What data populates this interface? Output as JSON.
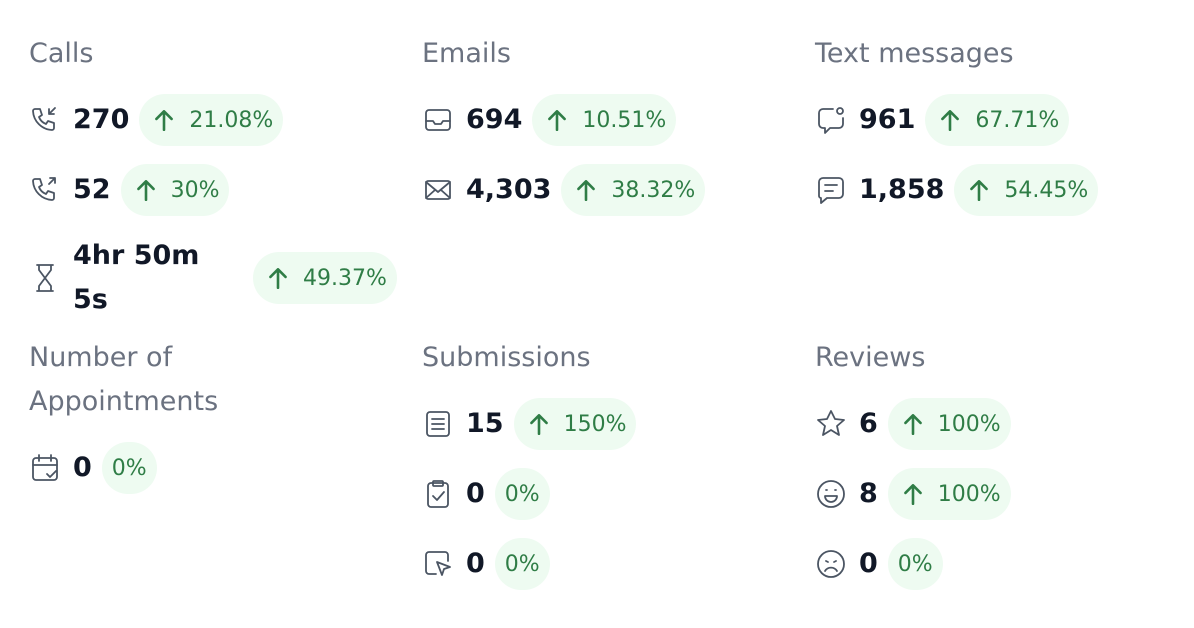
{
  "sections": [
    {
      "title": "Calls",
      "rows": [
        {
          "value": "270",
          "change": "21.08%"
        },
        {
          "value": "52",
          "change": "30%"
        },
        {
          "value": "4hr 50m 5s",
          "change": "49.37%"
        }
      ]
    },
    {
      "title": "Emails",
      "rows": [
        {
          "value": "694",
          "change": "10.51%"
        },
        {
          "value": "4,303",
          "change": "38.32%"
        }
      ]
    },
    {
      "title": "Text messages",
      "rows": [
        {
          "value": "961",
          "change": "67.71%"
        },
        {
          "value": "1,858",
          "change": "54.45%"
        }
      ]
    },
    {
      "title": "Number of Appointments",
      "rows": [
        {
          "value": "0",
          "change": "0%"
        }
      ]
    },
    {
      "title": "Submissions",
      "rows": [
        {
          "value": "15",
          "change": "150%"
        },
        {
          "value": "0",
          "change": "0%"
        },
        {
          "value": "0",
          "change": "0%"
        }
      ]
    },
    {
      "title": "Reviews",
      "rows": [
        {
          "value": "6",
          "change": "100%"
        },
        {
          "value": "8",
          "change": "100%"
        },
        {
          "value": "0",
          "change": "0%"
        }
      ]
    }
  ]
}
